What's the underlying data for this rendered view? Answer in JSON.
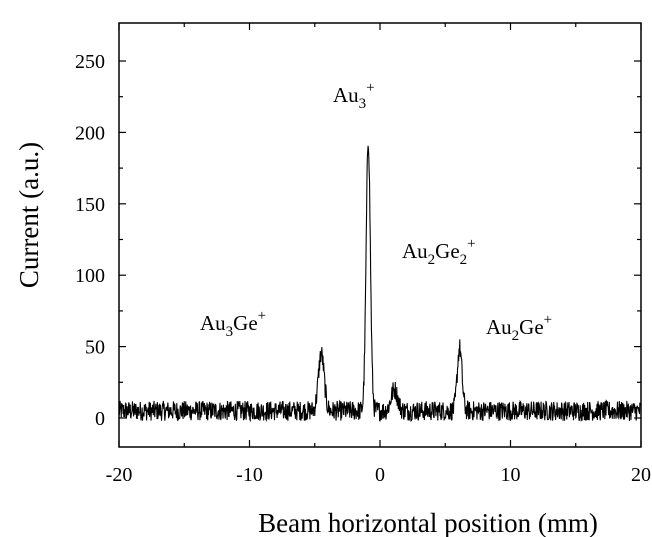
{
  "chart_data": {
    "type": "line",
    "xlabel": "Beam horizontal position (mm)",
    "ylabel": "Current (a.u.)",
    "xlim": [
      -20,
      20
    ],
    "ylim": [
      -20,
      275
    ],
    "xticks": [
      -20,
      -10,
      0,
      10,
      20
    ],
    "yticks": [
      0,
      50,
      100,
      150,
      200,
      250
    ],
    "grid": false,
    "baseline": {
      "mean": 5,
      "noise_amplitude": 7
    },
    "peaks": [
      {
        "x": -4.5,
        "y": 45,
        "label": {
          "base": "Au",
          "sub": "3",
          "tail": "Ge",
          "sup": "+"
        }
      },
      {
        "x": -0.9,
        "y": 195,
        "label": {
          "base": "Au",
          "sub": "3",
          "tail": "",
          "sup": "+"
        }
      },
      {
        "x": 1.1,
        "y": 20,
        "label": {
          "base": "Au",
          "sub": "2",
          "tail": "Ge",
          "sub2": "2",
          "sup": "+"
        }
      },
      {
        "x": 6.1,
        "y": 49,
        "label": {
          "base": "Au",
          "sub": "2",
          "tail": "Ge",
          "sup": "+"
        }
      }
    ],
    "line_color": "#000000"
  }
}
